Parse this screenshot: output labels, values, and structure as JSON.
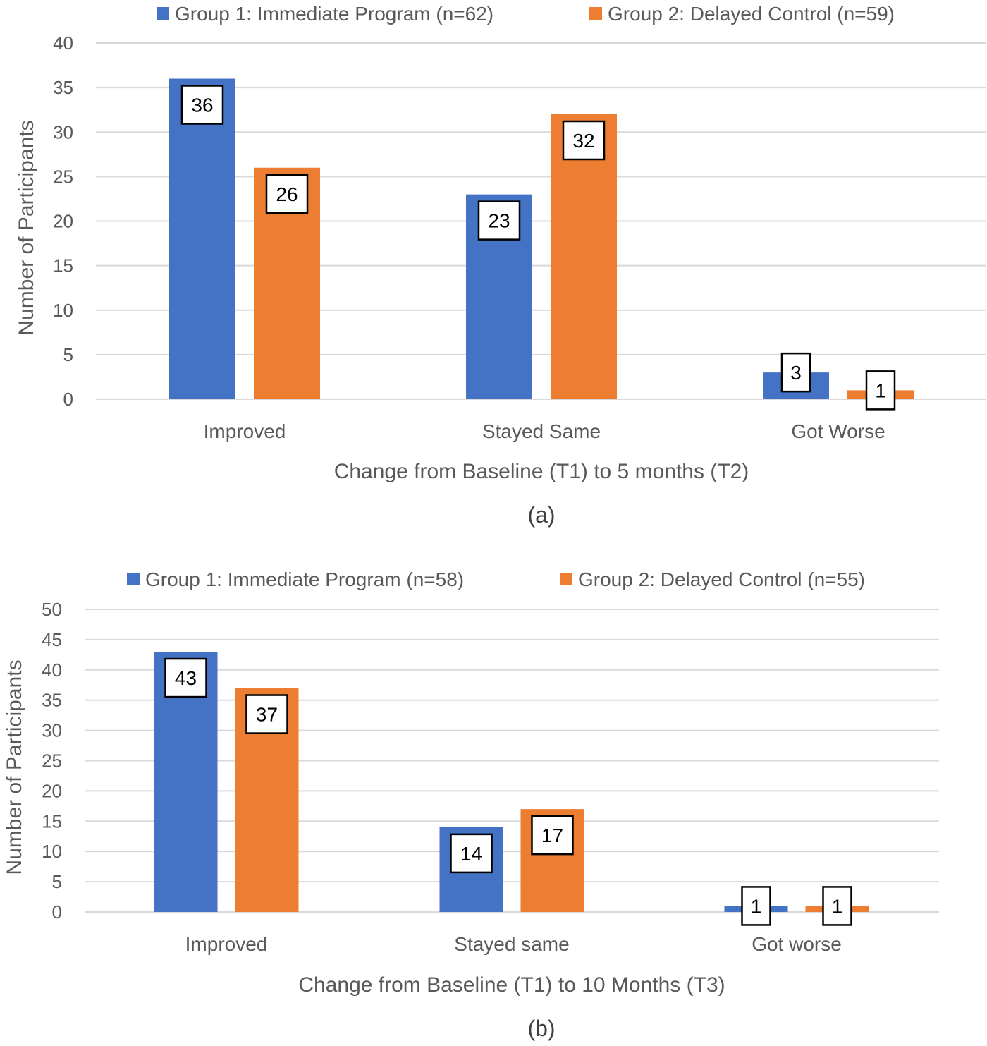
{
  "colors": {
    "group1": "#4472C4",
    "group2": "#ED7D31",
    "grid": "#D9D9D9",
    "text": "#595959"
  },
  "chart_data": [
    {
      "type": "bar",
      "panel_label": "(a)",
      "categories": [
        "Improved",
        "Stayed Same",
        "Got Worse"
      ],
      "series": [
        {
          "name": "Group 1: Immediate Program (n=62)",
          "values": [
            36,
            23,
            3
          ],
          "color": "#4472C4"
        },
        {
          "name": "Group 2: Delayed Control (n=59)",
          "values": [
            26,
            32,
            1
          ],
          "color": "#ED7D31"
        }
      ],
      "xlabel": "Change from Baseline (T1) to 5 months (T2)",
      "ylabel": "Number of Participants",
      "ylim": [
        0,
        40
      ],
      "ytick_step": 5,
      "grid": true,
      "legend": "top",
      "data_labels": true
    },
    {
      "type": "bar",
      "panel_label": "(b)",
      "categories": [
        "Improved",
        "Stayed same",
        "Got worse"
      ],
      "series": [
        {
          "name": "Group 1: Immediate Program (n=58)",
          "values": [
            43,
            14,
            1
          ],
          "color": "#4472C4"
        },
        {
          "name": "Group 2: Delayed Control (n=55)",
          "values": [
            37,
            17,
            1
          ],
          "color": "#ED7D31"
        }
      ],
      "xlabel": "Change from Baseline (T1) to 10 Months (T3)",
      "ylabel": "Number of Participants",
      "ylim": [
        0,
        50
      ],
      "ytick_step": 5,
      "grid": true,
      "legend": "top",
      "data_labels": true
    }
  ]
}
